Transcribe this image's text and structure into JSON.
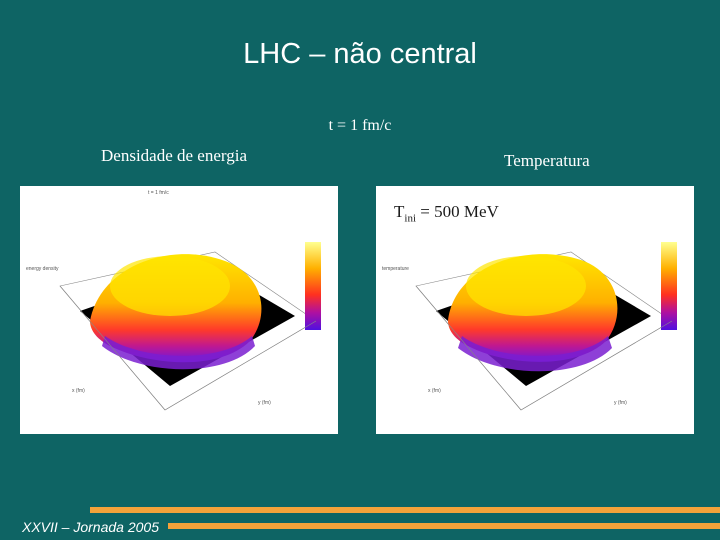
{
  "slide": {
    "title": "LHC – não central",
    "time_label": "t = 1 fm/c",
    "left_label": "Densidade de energia",
    "right_label": "Temperatura",
    "tini_main": "T",
    "tini_sub": "ini",
    "tini_value": " = 500 MeV",
    "footer": "XXVII – Jornada 2005"
  },
  "colors": {
    "background": "#0e6464",
    "stripe": "#f4a23a",
    "surface_hot": "#ffe000",
    "surface_mid": "#ff6a00",
    "surface_cool": "#7a1fd0"
  }
}
